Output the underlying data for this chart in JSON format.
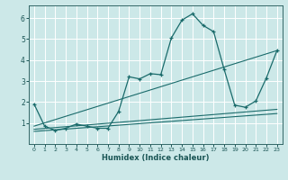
{
  "xlabel": "Humidex (Indice chaleur)",
  "ylabel": "",
  "background_color": "#cce8e8",
  "grid_color": "#ffffff",
  "line_color": "#1a6b6b",
  "xlim": [
    -0.5,
    23.5
  ],
  "ylim": [
    0,
    6.6
  ],
  "xticks": [
    0,
    1,
    2,
    3,
    4,
    5,
    6,
    7,
    8,
    9,
    10,
    11,
    12,
    13,
    14,
    15,
    16,
    17,
    18,
    19,
    20,
    21,
    22,
    23
  ],
  "yticks": [
    1,
    2,
    3,
    4,
    5,
    6
  ],
  "series": [
    {
      "x": [
        0,
        1,
        2,
        3,
        4,
        5,
        6,
        7,
        8,
        9,
        10,
        11,
        12,
        13,
        14,
        15,
        16,
        17,
        18,
        19,
        20,
        21,
        22,
        23
      ],
      "y": [
        1.9,
        0.85,
        0.65,
        0.75,
        0.95,
        0.85,
        0.75,
        0.75,
        1.55,
        3.2,
        3.1,
        3.35,
        3.3,
        5.05,
        5.9,
        6.2,
        5.65,
        5.35,
        3.55,
        1.85,
        1.75,
        2.05,
        3.15,
        4.45
      ],
      "marker": true
    },
    {
      "x": [
        0,
        23
      ],
      "y": [
        0.85,
        4.45
      ],
      "marker": false
    },
    {
      "x": [
        0,
        23
      ],
      "y": [
        0.7,
        1.65
      ],
      "marker": false
    },
    {
      "x": [
        0,
        23
      ],
      "y": [
        0.6,
        1.45
      ],
      "marker": false
    }
  ]
}
